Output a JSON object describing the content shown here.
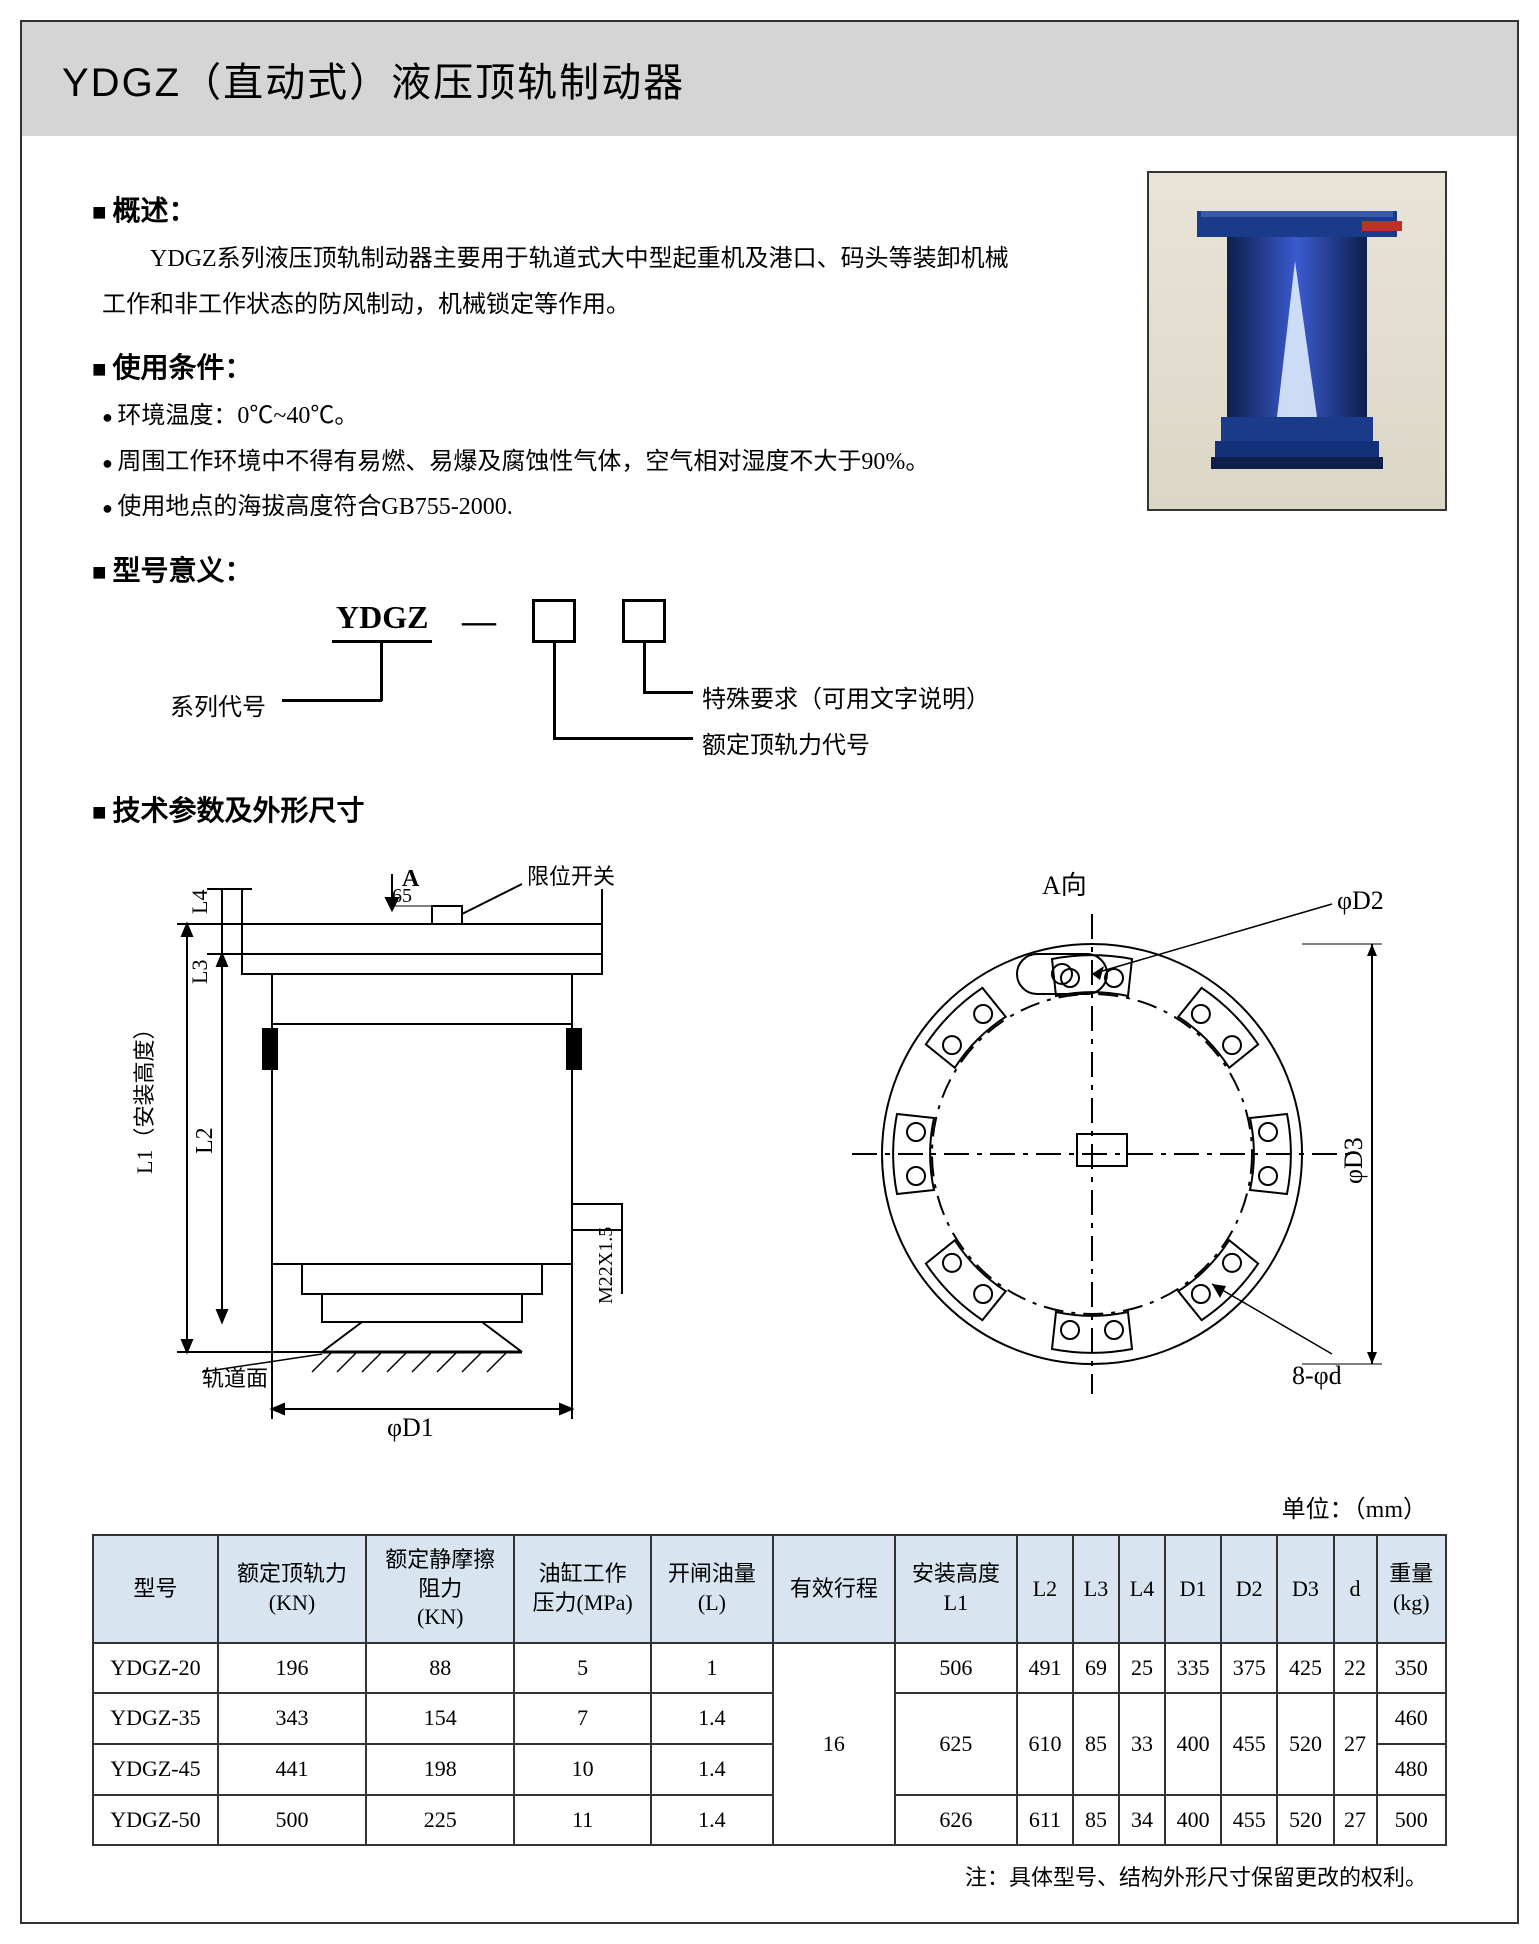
{
  "title": "YDGZ（直动式）液压顶轨制动器",
  "sections": {
    "overview": {
      "heading": "概述：",
      "line1": "YDGZ系列液压顶轨制动器主要用于轨道式大中型起重机及港口、码头等装卸机械",
      "line2": "工作和非工作状态的防风制动，机械锁定等作用。"
    },
    "conditions": {
      "heading": "使用条件：",
      "b1": "环境温度：0℃~40℃。",
      "b2": "周围工作环境中不得有易燃、易爆及腐蚀性气体，空气相对湿度不大于90%。",
      "b3": "使用地点的海拔高度符合GB755-2000."
    },
    "modelMeaning": {
      "heading": "型号意义：",
      "series": "YDGZ",
      "dash": "—",
      "labelSeries": "系列代号",
      "labelRated": "额定顶轨力代号",
      "labelSpecial": "特殊要求（可用文字说明）"
    },
    "paramsHeading": "技术参数及外形尺寸"
  },
  "drawingLabels": {
    "limitSwitch": "限位开关",
    "arrowA": "A",
    "viewA": "A向",
    "L4": "L4",
    "L3": "L3",
    "L2": "L2",
    "L1": "L1（安装高度）",
    "d65": "65",
    "rail": "轨道面",
    "phiD1": "φD1",
    "phiD2": "φD2",
    "phiD3": "φD3",
    "eightPhi": "8-φd",
    "m22": "M22X1.5"
  },
  "unit": "单位：（mm）",
  "table": {
    "headers": [
      "型号",
      "额定顶轨力\n(KN)",
      "额定静摩擦\n阻力\n(KN)",
      "油缸工作\n压力(MPa)",
      "开闸油量\n(L)",
      "有效行程",
      "安装高度\nL1",
      "L2",
      "L3",
      "L4",
      "D1",
      "D2",
      "D3",
      "d",
      "重量\n(kg)"
    ],
    "rows": [
      [
        "YDGZ-20",
        "196",
        "88",
        "5",
        "1",
        "",
        "506",
        "491",
        "69",
        "25",
        "335",
        "375",
        "425",
        "22",
        "350"
      ],
      [
        "YDGZ-35",
        "343",
        "154",
        "7",
        "1.4",
        "",
        "",
        "",
        "",
        "",
        "",
        "",
        "",
        "",
        "460"
      ],
      [
        "YDGZ-45",
        "441",
        "198",
        "10",
        "1.4",
        "",
        "",
        "",
        "",
        "",
        "",
        "",
        "",
        "",
        "480"
      ],
      [
        "YDGZ-50",
        "500",
        "225",
        "11",
        "1.4",
        "",
        "626",
        "611",
        "85",
        "34",
        "400",
        "455",
        "520",
        "27",
        "500"
      ]
    ],
    "merged": {
      "stroke": "16",
      "row2_L1": "625",
      "row2_L2": "610",
      "row2_L3": "85",
      "row2_L4": "33",
      "row2_D1": "400",
      "row2_D2": "455",
      "row2_D3": "520",
      "row2_d": "27"
    }
  },
  "note": "注：具体型号、结构外形尺寸保留更改的权利。",
  "colors": {
    "titleBg": "#d5d5d5",
    "tableHeaderBg": "#d8e4f0",
    "border": "#333333",
    "productBlue": "#1a3a8a",
    "productDark": "#0e1f4a",
    "photoBg": "#e0dac8"
  }
}
